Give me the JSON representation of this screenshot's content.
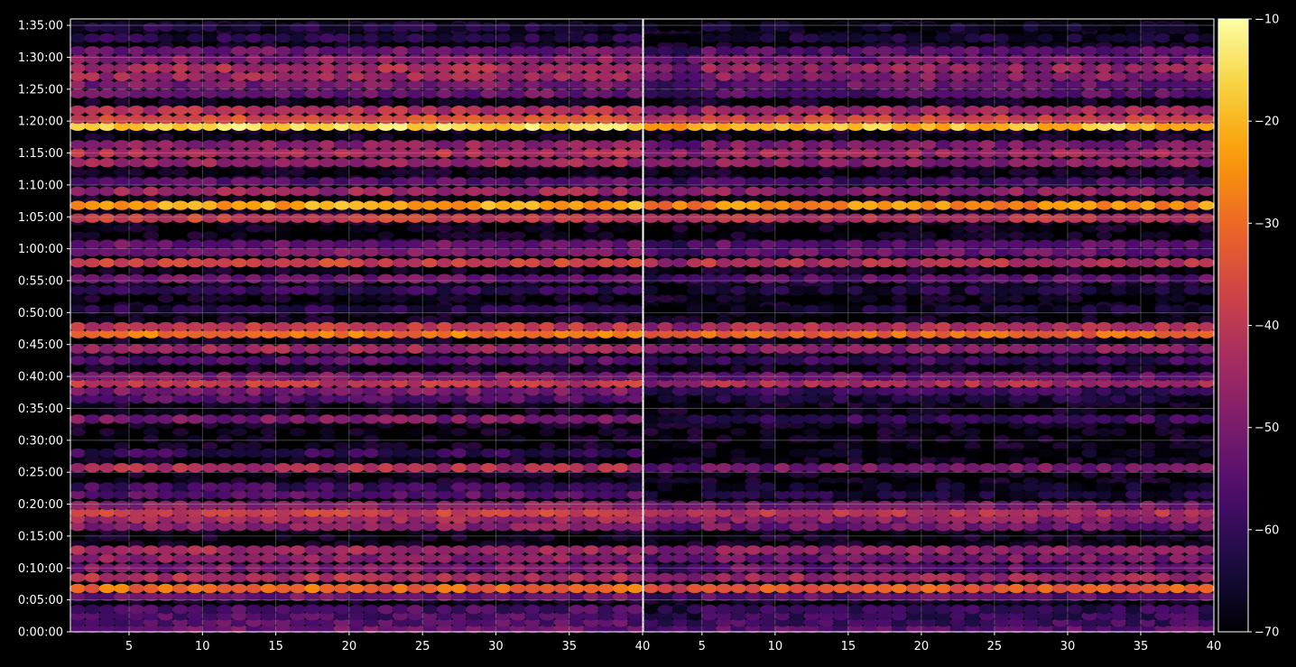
{
  "chart_data": {
    "type": "heatmap",
    "title": "",
    "xlabel": "",
    "ylabel": "",
    "background": "#000000",
    "colormap": "inferno",
    "colormap_stops": [
      "#000004",
      "#1b0c41",
      "#4a0c6b",
      "#781c6d",
      "#a52c60",
      "#cf4446",
      "#ed6925",
      "#fb9b06",
      "#f7d13d",
      "#fcffa4"
    ],
    "grid": true,
    "panels": [
      {
        "name": "left",
        "x_range": [
          1,
          40
        ],
        "x_tick_values": [
          5,
          10,
          15,
          20,
          25,
          30,
          35,
          40
        ],
        "x_tick_labels": [
          "5",
          "10",
          "15",
          "20",
          "25",
          "30",
          "35",
          "40"
        ],
        "drop_in_lower_band": false
      },
      {
        "name": "right",
        "x_range": [
          1,
          40
        ],
        "x_tick_values": [
          5,
          10,
          15,
          20,
          25,
          30,
          35,
          40
        ],
        "x_tick_labels": [
          "5",
          "10",
          "15",
          "20",
          "25",
          "30",
          "35",
          "40"
        ],
        "drop_in_lower_band": true
      }
    ],
    "y_axis": {
      "range_minutes": [
        0,
        96
      ],
      "tick_values_minutes": [
        0,
        5,
        10,
        15,
        20,
        25,
        30,
        35,
        40,
        45,
        50,
        55,
        60,
        65,
        70,
        75,
        80,
        85,
        90,
        95
      ],
      "tick_labels": [
        "0:00:00",
        "0:05:00",
        "0:10:00",
        "0:15:00",
        "0:20:00",
        "0:25:00",
        "0:30:00",
        "0:35:00",
        "0:40:00",
        "0:45:00",
        "0:50:00",
        "0:55:00",
        "1:00:00",
        "1:05:00",
        "1:10:00",
        "1:15:00",
        "1:20:00",
        "1:25:00",
        "1:30:00",
        "1:35:00"
      ]
    },
    "colorbar": {
      "range": [
        -70,
        -10
      ],
      "tick_values": [
        -70,
        -60,
        -50,
        -40,
        -30,
        -20,
        -10
      ],
      "tick_labels": [
        "−70",
        "−60",
        "−50",
        "−40",
        "−30",
        "−20",
        "−10"
      ]
    },
    "rows": [
      {
        "minute": 0.5,
        "level": -52
      },
      {
        "minute": 1.5,
        "level": -55
      },
      {
        "minute": 2.5,
        "level": -56
      },
      {
        "minute": 3.5,
        "level": -57
      },
      {
        "minute": 5.5,
        "level": -52
      },
      {
        "minute": 6.8,
        "level": -30
      },
      {
        "minute": 8.5,
        "level": -42
      },
      {
        "minute": 10.0,
        "level": -50
      },
      {
        "minute": 11.5,
        "level": -48
      },
      {
        "minute": 12.8,
        "level": -44
      },
      {
        "minute": 16.5,
        "level": -48
      },
      {
        "minute": 17.7,
        "level": -45
      },
      {
        "minute": 18.7,
        "level": -38
      },
      {
        "minute": 19.8,
        "level": -48
      },
      {
        "minute": 21.5,
        "level": -55
      },
      {
        "minute": 22.7,
        "level": -58
      },
      {
        "minute": 25.7,
        "level": -42
      },
      {
        "minute": 28.0,
        "level": -60
      },
      {
        "minute": 33.3,
        "level": -50
      },
      {
        "minute": 36.5,
        "level": -55
      },
      {
        "minute": 37.7,
        "level": -50
      },
      {
        "minute": 39.0,
        "level": -40
      },
      {
        "minute": 40.0,
        "level": -50
      },
      {
        "minute": 42.5,
        "level": -56
      },
      {
        "minute": 44.3,
        "level": -45
      },
      {
        "minute": 46.7,
        "level": -28
      },
      {
        "minute": 47.8,
        "level": -40
      },
      {
        "minute": 50.5,
        "level": -62
      },
      {
        "minute": 53.5,
        "level": -60
      },
      {
        "minute": 55.3,
        "level": -52
      },
      {
        "minute": 57.8,
        "level": -38
      },
      {
        "minute": 59.5,
        "level": -50
      },
      {
        "minute": 60.7,
        "level": -52
      },
      {
        "minute": 64.8,
        "level": -38
      },
      {
        "minute": 66.8,
        "level": -22
      },
      {
        "minute": 69.0,
        "level": -45
      },
      {
        "minute": 70.5,
        "level": -55
      },
      {
        "minute": 73.5,
        "level": -45
      },
      {
        "minute": 75.0,
        "level": -42
      },
      {
        "minute": 76.3,
        "level": -47
      },
      {
        "minute": 79.2,
        "level": -15
      },
      {
        "minute": 80.3,
        "level": -35
      },
      {
        "minute": 81.7,
        "level": -42
      },
      {
        "minute": 84.3,
        "level": -52
      },
      {
        "minute": 85.7,
        "level": -50
      },
      {
        "minute": 87.0,
        "level": -45
      },
      {
        "minute": 88.3,
        "level": -43
      },
      {
        "minute": 89.7,
        "level": -48
      },
      {
        "minute": 91.0,
        "level": -52
      },
      {
        "minute": 93.0,
        "level": -62
      },
      {
        "minute": 94.7,
        "level": -64
      }
    ]
  }
}
